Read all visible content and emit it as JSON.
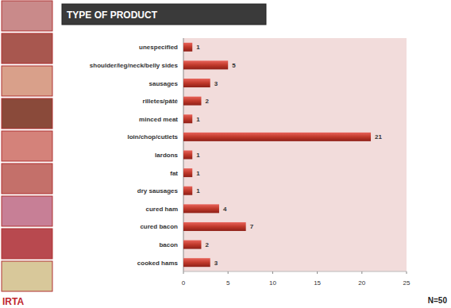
{
  "chart_data": {
    "type": "bar",
    "orientation": "horizontal",
    "title": "TYPE OF PRODUCT",
    "annotations": [
      "N=50",
      "IRTA"
    ],
    "categories": [
      "unespecified",
      "shoulder/leg/neck/belly sides",
      "sausages",
      "rilletes/pâté",
      "minced meat",
      "loin/chop/cutlets",
      "lardons",
      "fat",
      "dry sausages",
      "cured ham",
      "cured bacon",
      "bacon",
      "cooked hams"
    ],
    "values": [
      1,
      5,
      3,
      2,
      1,
      21,
      1,
      1,
      1,
      4,
      7,
      2,
      3
    ],
    "color": "#c0392b",
    "xlim": [
      0,
      25
    ],
    "xticks": [
      0,
      5,
      10,
      15,
      20,
      25
    ],
    "grid": false,
    "data_labels": true
  }
}
